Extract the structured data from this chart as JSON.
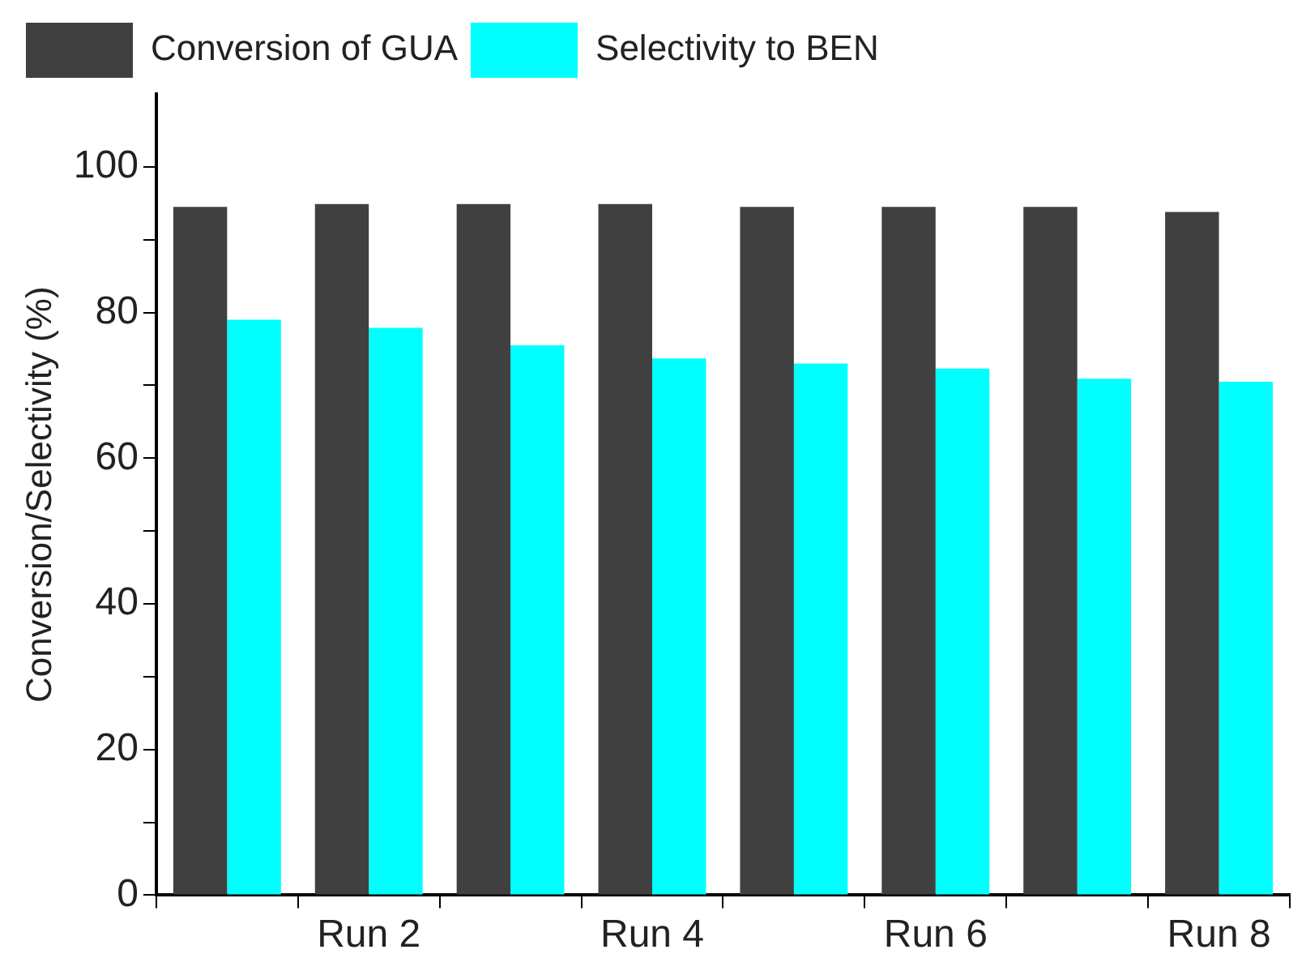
{
  "chart_data": {
    "type": "bar",
    "ylabel": "Conversion/Selectivity (%)",
    "categories": [
      null,
      "Run 2",
      null,
      "Run 4",
      null,
      "Run 6",
      null,
      "Run 8"
    ],
    "series": [
      {
        "name": "Conversion of GUA",
        "color": "#404040",
        "values": [
          94.5,
          94.9,
          94.9,
          94.9,
          94.5,
          94.5,
          94.5,
          93.8
        ]
      },
      {
        "name": "Selectivity to BEN",
        "color": "#00ffff",
        "values": [
          79.0,
          77.9,
          75.5,
          73.7,
          73.0,
          72.3,
          70.9,
          70.5
        ]
      }
    ],
    "ylim": [
      0,
      110
    ],
    "yticks": [
      0,
      {
        "value": 10,
        "label": null
      },
      20,
      {
        "value": 30,
        "label": null
      },
      40,
      {
        "value": 50,
        "label": null
      },
      60,
      {
        "value": 70,
        "label": null
      },
      80,
      {
        "value": 90,
        "label": null
      },
      100
    ],
    "legend": "top",
    "grid": false
  }
}
